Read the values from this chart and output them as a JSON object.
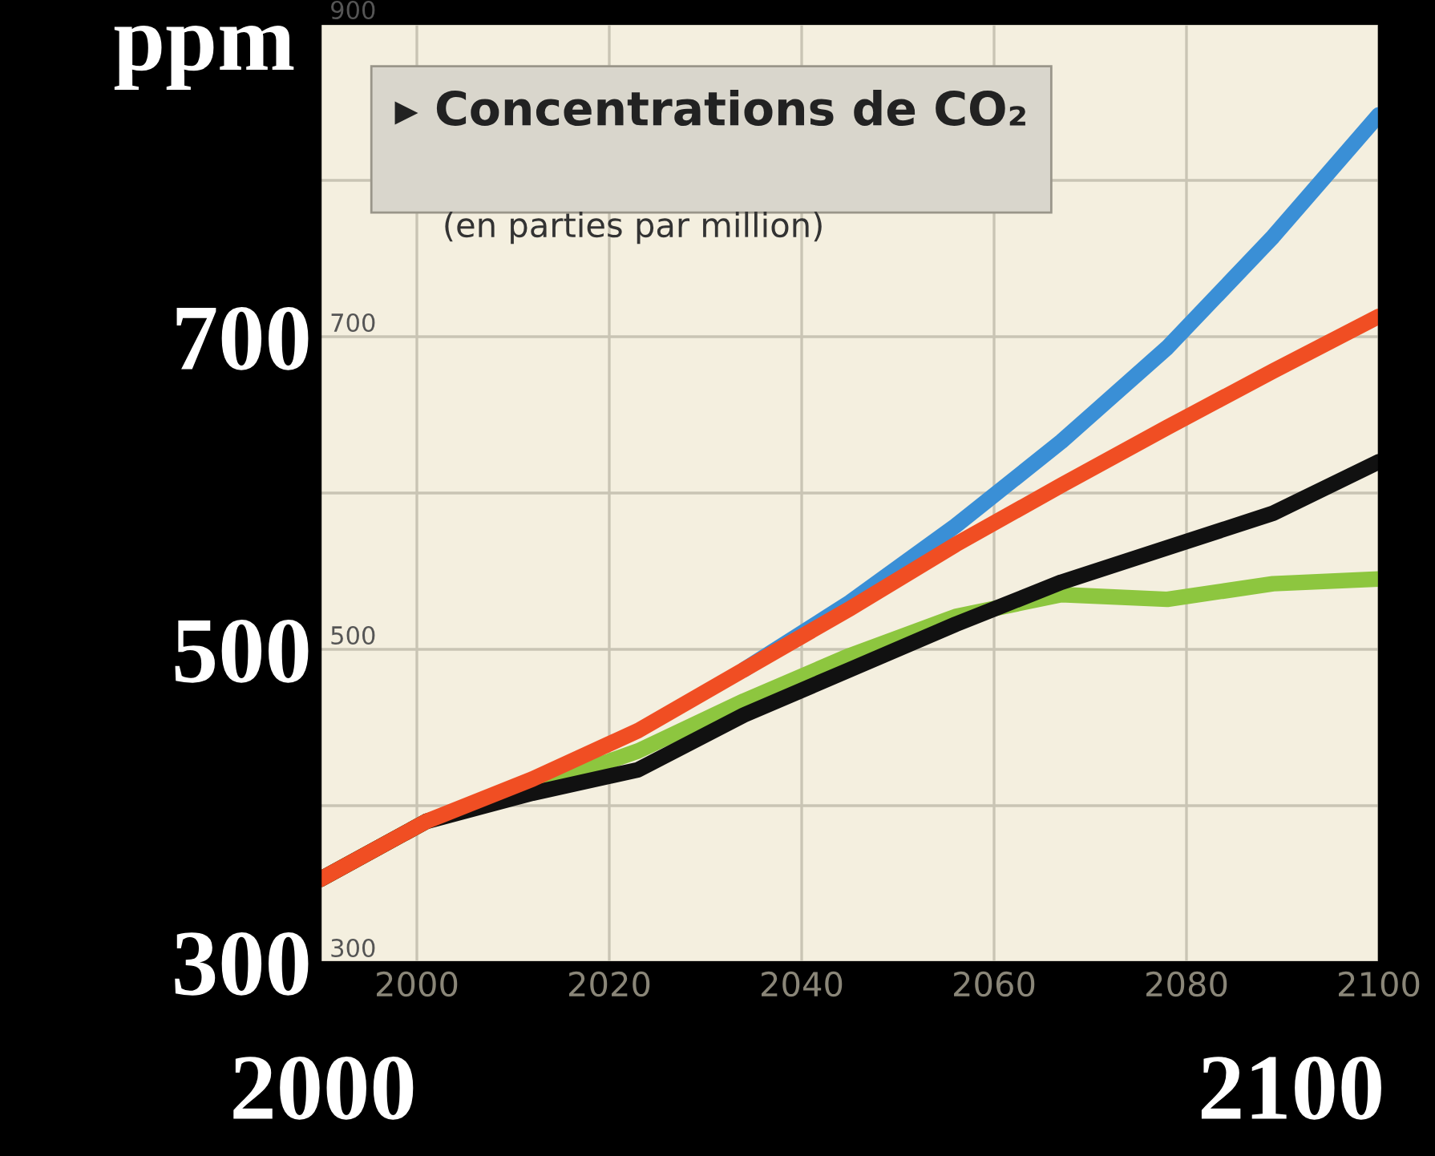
{
  "chart_data": {
    "type": "line",
    "title": "▸ Concentrations de CO₂",
    "subtitle": "(en parties par million)",
    "ylabel": "ppm",
    "annotations": [
      "2000",
      "2100"
    ],
    "x": [
      1990,
      2001,
      2012,
      2023,
      2034,
      2045,
      2056,
      2067,
      2078,
      2089,
      2100
    ],
    "series": [
      {
        "color": "#3a8fd6",
        "values": [
          null,
          null,
          null,
          null,
          487,
          530,
          579,
          633,
          693,
          764,
          842
        ]
      },
      {
        "color": "#8dc63f",
        "values": [
          353,
          390,
          411,
          435,
          467,
          496,
          521,
          535,
          532,
          542,
          545
        ]
      },
      {
        "color": "#111111",
        "values": [
          353,
          390,
          408,
          423,
          458,
          487,
          516,
          543,
          565,
          587,
          620
        ]
      },
      {
        "color": "#f04e23",
        "values": [
          353,
          390,
          417,
          448,
          487,
          526,
          567,
          605,
          642,
          678,
          713
        ]
      }
    ],
    "xlim": [
      1990,
      2100
    ],
    "ylim": [
      300,
      900
    ],
    "xticks": [
      2000,
      2020,
      2040,
      2060,
      2080,
      2100
    ],
    "yticks": [
      300,
      {
        "value": 400,
        "label": null
      },
      500,
      {
        "value": 600,
        "label": null
      },
      700,
      {
        "value": 800,
        "label": null
      },
      {
        "value": 900,
        "label": null
      }
    ],
    "y2lim": [
      300,
      900
    ],
    "y2ticks": [
      300,
      500,
      700,
      900
    ],
    "grid": true,
    "line_style": "solid",
    "marker": "none"
  }
}
